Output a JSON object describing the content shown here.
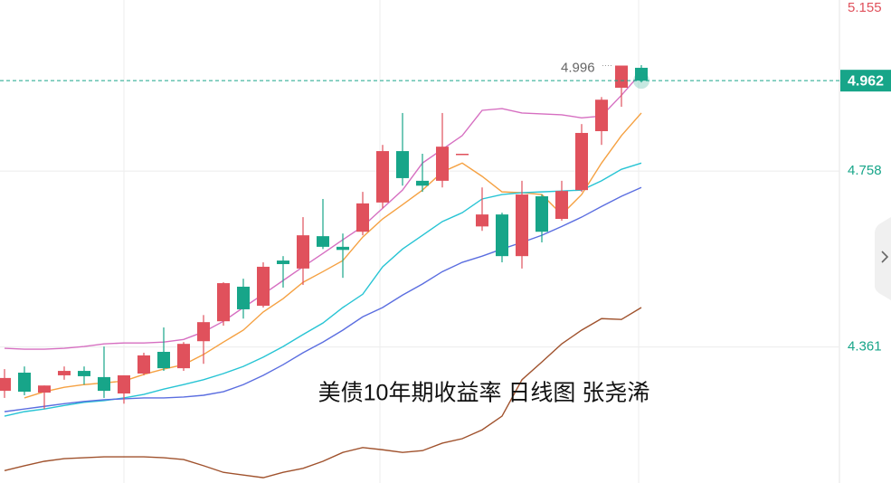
{
  "chart_data": {
    "type": "candlestick",
    "title": "美债10年期收益率 日线图  张尧浠",
    "up_color": "#e0515c",
    "down_color": "#17a589",
    "open": [
      4.262,
      4.303,
      4.258,
      4.297,
      4.307,
      4.293,
      4.256,
      4.301,
      4.35,
      4.313,
      4.374,
      4.419,
      4.497,
      4.454,
      4.556,
      4.538,
      4.611,
      4.587,
      4.621,
      4.687,
      4.803,
      4.736,
      4.736,
      4.797,
      4.633,
      4.66,
      4.566,
      4.701,
      4.65,
      4.715,
      4.848,
      4.946,
      4.991
    ],
    "high": [
      4.311,
      4.317,
      4.274,
      4.317,
      4.317,
      4.362,
      4.297,
      4.348,
      4.405,
      4.372,
      4.433,
      4.507,
      4.515,
      4.552,
      4.566,
      4.654,
      4.695,
      4.617,
      4.711,
      4.817,
      4.889,
      4.797,
      4.889,
      4.797,
      4.721,
      4.664,
      4.736,
      4.705,
      4.736,
      4.864,
      4.925,
      4.996,
      4.997
    ],
    "low": [
      4.246,
      4.252,
      4.221,
      4.287,
      4.276,
      4.246,
      4.233,
      4.297,
      4.307,
      4.307,
      4.323,
      4.409,
      4.425,
      4.45,
      4.495,
      4.501,
      4.582,
      4.517,
      4.613,
      4.674,
      4.725,
      4.711,
      4.721,
      4.795,
      4.623,
      4.552,
      4.538,
      4.597,
      4.646,
      4.711,
      4.817,
      4.903,
      4.958
    ],
    "close": [
      4.291,
      4.26,
      4.274,
      4.307,
      4.295,
      4.262,
      4.297,
      4.342,
      4.313,
      4.368,
      4.417,
      4.505,
      4.446,
      4.542,
      4.548,
      4.613,
      4.587,
      4.58,
      4.685,
      4.803,
      4.742,
      4.725,
      4.813,
      4.797,
      4.66,
      4.566,
      4.705,
      4.621,
      4.713,
      4.844,
      4.919,
      4.996,
      4.962
    ],
    "lines": [
      {
        "color": "#d66fc1",
        "values": [
          4.358,
          4.356,
          4.356,
          4.358,
          4.362,
          4.368,
          4.37,
          4.37,
          4.372,
          4.378,
          4.395,
          4.419,
          4.45,
          4.48,
          4.511,
          4.542,
          4.572,
          4.603,
          4.633,
          4.674,
          4.715,
          4.776,
          4.807,
          4.838,
          4.895,
          4.899,
          4.889,
          4.887,
          4.885,
          4.878,
          4.882,
          4.929,
          4.98
        ]
      },
      {
        "color": "#f5a142",
        "values": [
          null,
          4.246,
          4.26,
          4.27,
          4.276,
          4.28,
          4.284,
          4.299,
          4.311,
          4.321,
          4.344,
          4.372,
          4.399,
          4.44,
          4.47,
          4.507,
          4.531,
          4.556,
          4.609,
          4.65,
          4.682,
          4.715,
          4.756,
          4.776,
          4.746,
          4.711,
          4.709,
          4.705,
          4.66,
          4.705,
          4.776,
          4.838,
          4.889
        ]
      },
      {
        "color": "#27c4d4",
        "values": [
          4.205,
          4.215,
          4.221,
          4.229,
          4.236,
          4.24,
          4.246,
          4.254,
          4.266,
          4.276,
          4.287,
          4.301,
          4.317,
          4.338,
          4.362,
          4.389,
          4.415,
          4.45,
          4.48,
          4.542,
          4.582,
          4.613,
          4.644,
          4.664,
          4.695,
          4.705,
          4.709,
          4.711,
          4.713,
          4.715,
          4.736,
          4.762,
          4.776
        ]
      },
      {
        "color": "#5b6ee0",
        "values": [
          4.215,
          4.221,
          4.227,
          4.233,
          4.238,
          4.242,
          4.244,
          4.246,
          4.246,
          4.248,
          4.252,
          4.26,
          4.276,
          4.297,
          4.321,
          4.348,
          4.372,
          4.399,
          4.429,
          4.45,
          4.478,
          4.503,
          4.531,
          4.552,
          4.566,
          4.582,
          4.597,
          4.613,
          4.633,
          4.654,
          4.678,
          4.701,
          4.721
        ]
      },
      {
        "color": "#a0522d",
        "values": [
          4.082,
          4.093,
          4.103,
          4.109,
          4.111,
          4.113,
          4.113,
          4.113,
          4.111,
          4.107,
          4.093,
          4.078,
          4.072,
          4.066,
          4.078,
          4.087,
          4.103,
          4.123,
          4.134,
          4.129,
          4.123,
          4.127,
          4.144,
          4.154,
          4.174,
          4.205,
          4.287,
          4.327,
          4.368,
          4.399,
          4.425,
          4.423,
          4.45
        ]
      }
    ],
    "high_label": 4.996,
    "last_price": 4.962,
    "ylim": [
      4.054,
      5.144
    ],
    "yticks": [
      5.155,
      4.758,
      4.361
    ],
    "grid": true
  }
}
